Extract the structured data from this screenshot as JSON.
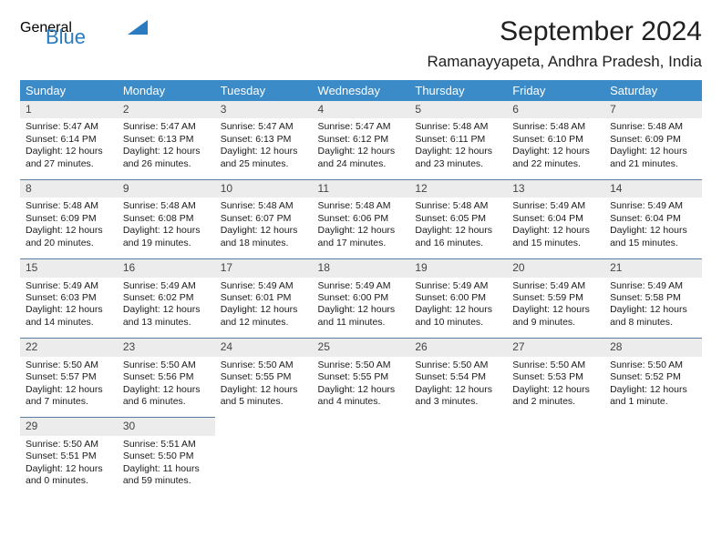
{
  "logo": {
    "text1": "General",
    "text2": "Blue"
  },
  "title": "September 2024",
  "location": "Ramanayyapeta, Andhra Pradesh, India",
  "colors": {
    "header_bg": "#3b8bc8",
    "header_text": "#ffffff",
    "daynum_bg": "#ececec",
    "daynum_text": "#444444",
    "row_divider": "#5a7ea0",
    "body_text": "#1a1a1a",
    "logo_gray": "#6a6a6a",
    "logo_blue": "#2a7bbf"
  },
  "weekdays": [
    "Sunday",
    "Monday",
    "Tuesday",
    "Wednesday",
    "Thursday",
    "Friday",
    "Saturday"
  ],
  "days": [
    {
      "n": "1",
      "sunrise": "Sunrise: 5:47 AM",
      "sunset": "Sunset: 6:14 PM",
      "day1": "Daylight: 12 hours",
      "day2": "and 27 minutes."
    },
    {
      "n": "2",
      "sunrise": "Sunrise: 5:47 AM",
      "sunset": "Sunset: 6:13 PM",
      "day1": "Daylight: 12 hours",
      "day2": "and 26 minutes."
    },
    {
      "n": "3",
      "sunrise": "Sunrise: 5:47 AM",
      "sunset": "Sunset: 6:13 PM",
      "day1": "Daylight: 12 hours",
      "day2": "and 25 minutes."
    },
    {
      "n": "4",
      "sunrise": "Sunrise: 5:47 AM",
      "sunset": "Sunset: 6:12 PM",
      "day1": "Daylight: 12 hours",
      "day2": "and 24 minutes."
    },
    {
      "n": "5",
      "sunrise": "Sunrise: 5:48 AM",
      "sunset": "Sunset: 6:11 PM",
      "day1": "Daylight: 12 hours",
      "day2": "and 23 minutes."
    },
    {
      "n": "6",
      "sunrise": "Sunrise: 5:48 AM",
      "sunset": "Sunset: 6:10 PM",
      "day1": "Daylight: 12 hours",
      "day2": "and 22 minutes."
    },
    {
      "n": "7",
      "sunrise": "Sunrise: 5:48 AM",
      "sunset": "Sunset: 6:09 PM",
      "day1": "Daylight: 12 hours",
      "day2": "and 21 minutes."
    },
    {
      "n": "8",
      "sunrise": "Sunrise: 5:48 AM",
      "sunset": "Sunset: 6:09 PM",
      "day1": "Daylight: 12 hours",
      "day2": "and 20 minutes."
    },
    {
      "n": "9",
      "sunrise": "Sunrise: 5:48 AM",
      "sunset": "Sunset: 6:08 PM",
      "day1": "Daylight: 12 hours",
      "day2": "and 19 minutes."
    },
    {
      "n": "10",
      "sunrise": "Sunrise: 5:48 AM",
      "sunset": "Sunset: 6:07 PM",
      "day1": "Daylight: 12 hours",
      "day2": "and 18 minutes."
    },
    {
      "n": "11",
      "sunrise": "Sunrise: 5:48 AM",
      "sunset": "Sunset: 6:06 PM",
      "day1": "Daylight: 12 hours",
      "day2": "and 17 minutes."
    },
    {
      "n": "12",
      "sunrise": "Sunrise: 5:48 AM",
      "sunset": "Sunset: 6:05 PM",
      "day1": "Daylight: 12 hours",
      "day2": "and 16 minutes."
    },
    {
      "n": "13",
      "sunrise": "Sunrise: 5:49 AM",
      "sunset": "Sunset: 6:04 PM",
      "day1": "Daylight: 12 hours",
      "day2": "and 15 minutes."
    },
    {
      "n": "14",
      "sunrise": "Sunrise: 5:49 AM",
      "sunset": "Sunset: 6:04 PM",
      "day1": "Daylight: 12 hours",
      "day2": "and 15 minutes."
    },
    {
      "n": "15",
      "sunrise": "Sunrise: 5:49 AM",
      "sunset": "Sunset: 6:03 PM",
      "day1": "Daylight: 12 hours",
      "day2": "and 14 minutes."
    },
    {
      "n": "16",
      "sunrise": "Sunrise: 5:49 AM",
      "sunset": "Sunset: 6:02 PM",
      "day1": "Daylight: 12 hours",
      "day2": "and 13 minutes."
    },
    {
      "n": "17",
      "sunrise": "Sunrise: 5:49 AM",
      "sunset": "Sunset: 6:01 PM",
      "day1": "Daylight: 12 hours",
      "day2": "and 12 minutes."
    },
    {
      "n": "18",
      "sunrise": "Sunrise: 5:49 AM",
      "sunset": "Sunset: 6:00 PM",
      "day1": "Daylight: 12 hours",
      "day2": "and 11 minutes."
    },
    {
      "n": "19",
      "sunrise": "Sunrise: 5:49 AM",
      "sunset": "Sunset: 6:00 PM",
      "day1": "Daylight: 12 hours",
      "day2": "and 10 minutes."
    },
    {
      "n": "20",
      "sunrise": "Sunrise: 5:49 AM",
      "sunset": "Sunset: 5:59 PM",
      "day1": "Daylight: 12 hours",
      "day2": "and 9 minutes."
    },
    {
      "n": "21",
      "sunrise": "Sunrise: 5:49 AM",
      "sunset": "Sunset: 5:58 PM",
      "day1": "Daylight: 12 hours",
      "day2": "and 8 minutes."
    },
    {
      "n": "22",
      "sunrise": "Sunrise: 5:50 AM",
      "sunset": "Sunset: 5:57 PM",
      "day1": "Daylight: 12 hours",
      "day2": "and 7 minutes."
    },
    {
      "n": "23",
      "sunrise": "Sunrise: 5:50 AM",
      "sunset": "Sunset: 5:56 PM",
      "day1": "Daylight: 12 hours",
      "day2": "and 6 minutes."
    },
    {
      "n": "24",
      "sunrise": "Sunrise: 5:50 AM",
      "sunset": "Sunset: 5:55 PM",
      "day1": "Daylight: 12 hours",
      "day2": "and 5 minutes."
    },
    {
      "n": "25",
      "sunrise": "Sunrise: 5:50 AM",
      "sunset": "Sunset: 5:55 PM",
      "day1": "Daylight: 12 hours",
      "day2": "and 4 minutes."
    },
    {
      "n": "26",
      "sunrise": "Sunrise: 5:50 AM",
      "sunset": "Sunset: 5:54 PM",
      "day1": "Daylight: 12 hours",
      "day2": "and 3 minutes."
    },
    {
      "n": "27",
      "sunrise": "Sunrise: 5:50 AM",
      "sunset": "Sunset: 5:53 PM",
      "day1": "Daylight: 12 hours",
      "day2": "and 2 minutes."
    },
    {
      "n": "28",
      "sunrise": "Sunrise: 5:50 AM",
      "sunset": "Sunset: 5:52 PM",
      "day1": "Daylight: 12 hours",
      "day2": "and 1 minute."
    },
    {
      "n": "29",
      "sunrise": "Sunrise: 5:50 AM",
      "sunset": "Sunset: 5:51 PM",
      "day1": "Daylight: 12 hours",
      "day2": "and 0 minutes."
    },
    {
      "n": "30",
      "sunrise": "Sunrise: 5:51 AM",
      "sunset": "Sunset: 5:50 PM",
      "day1": "Daylight: 11 hours",
      "day2": "and 59 minutes."
    }
  ]
}
